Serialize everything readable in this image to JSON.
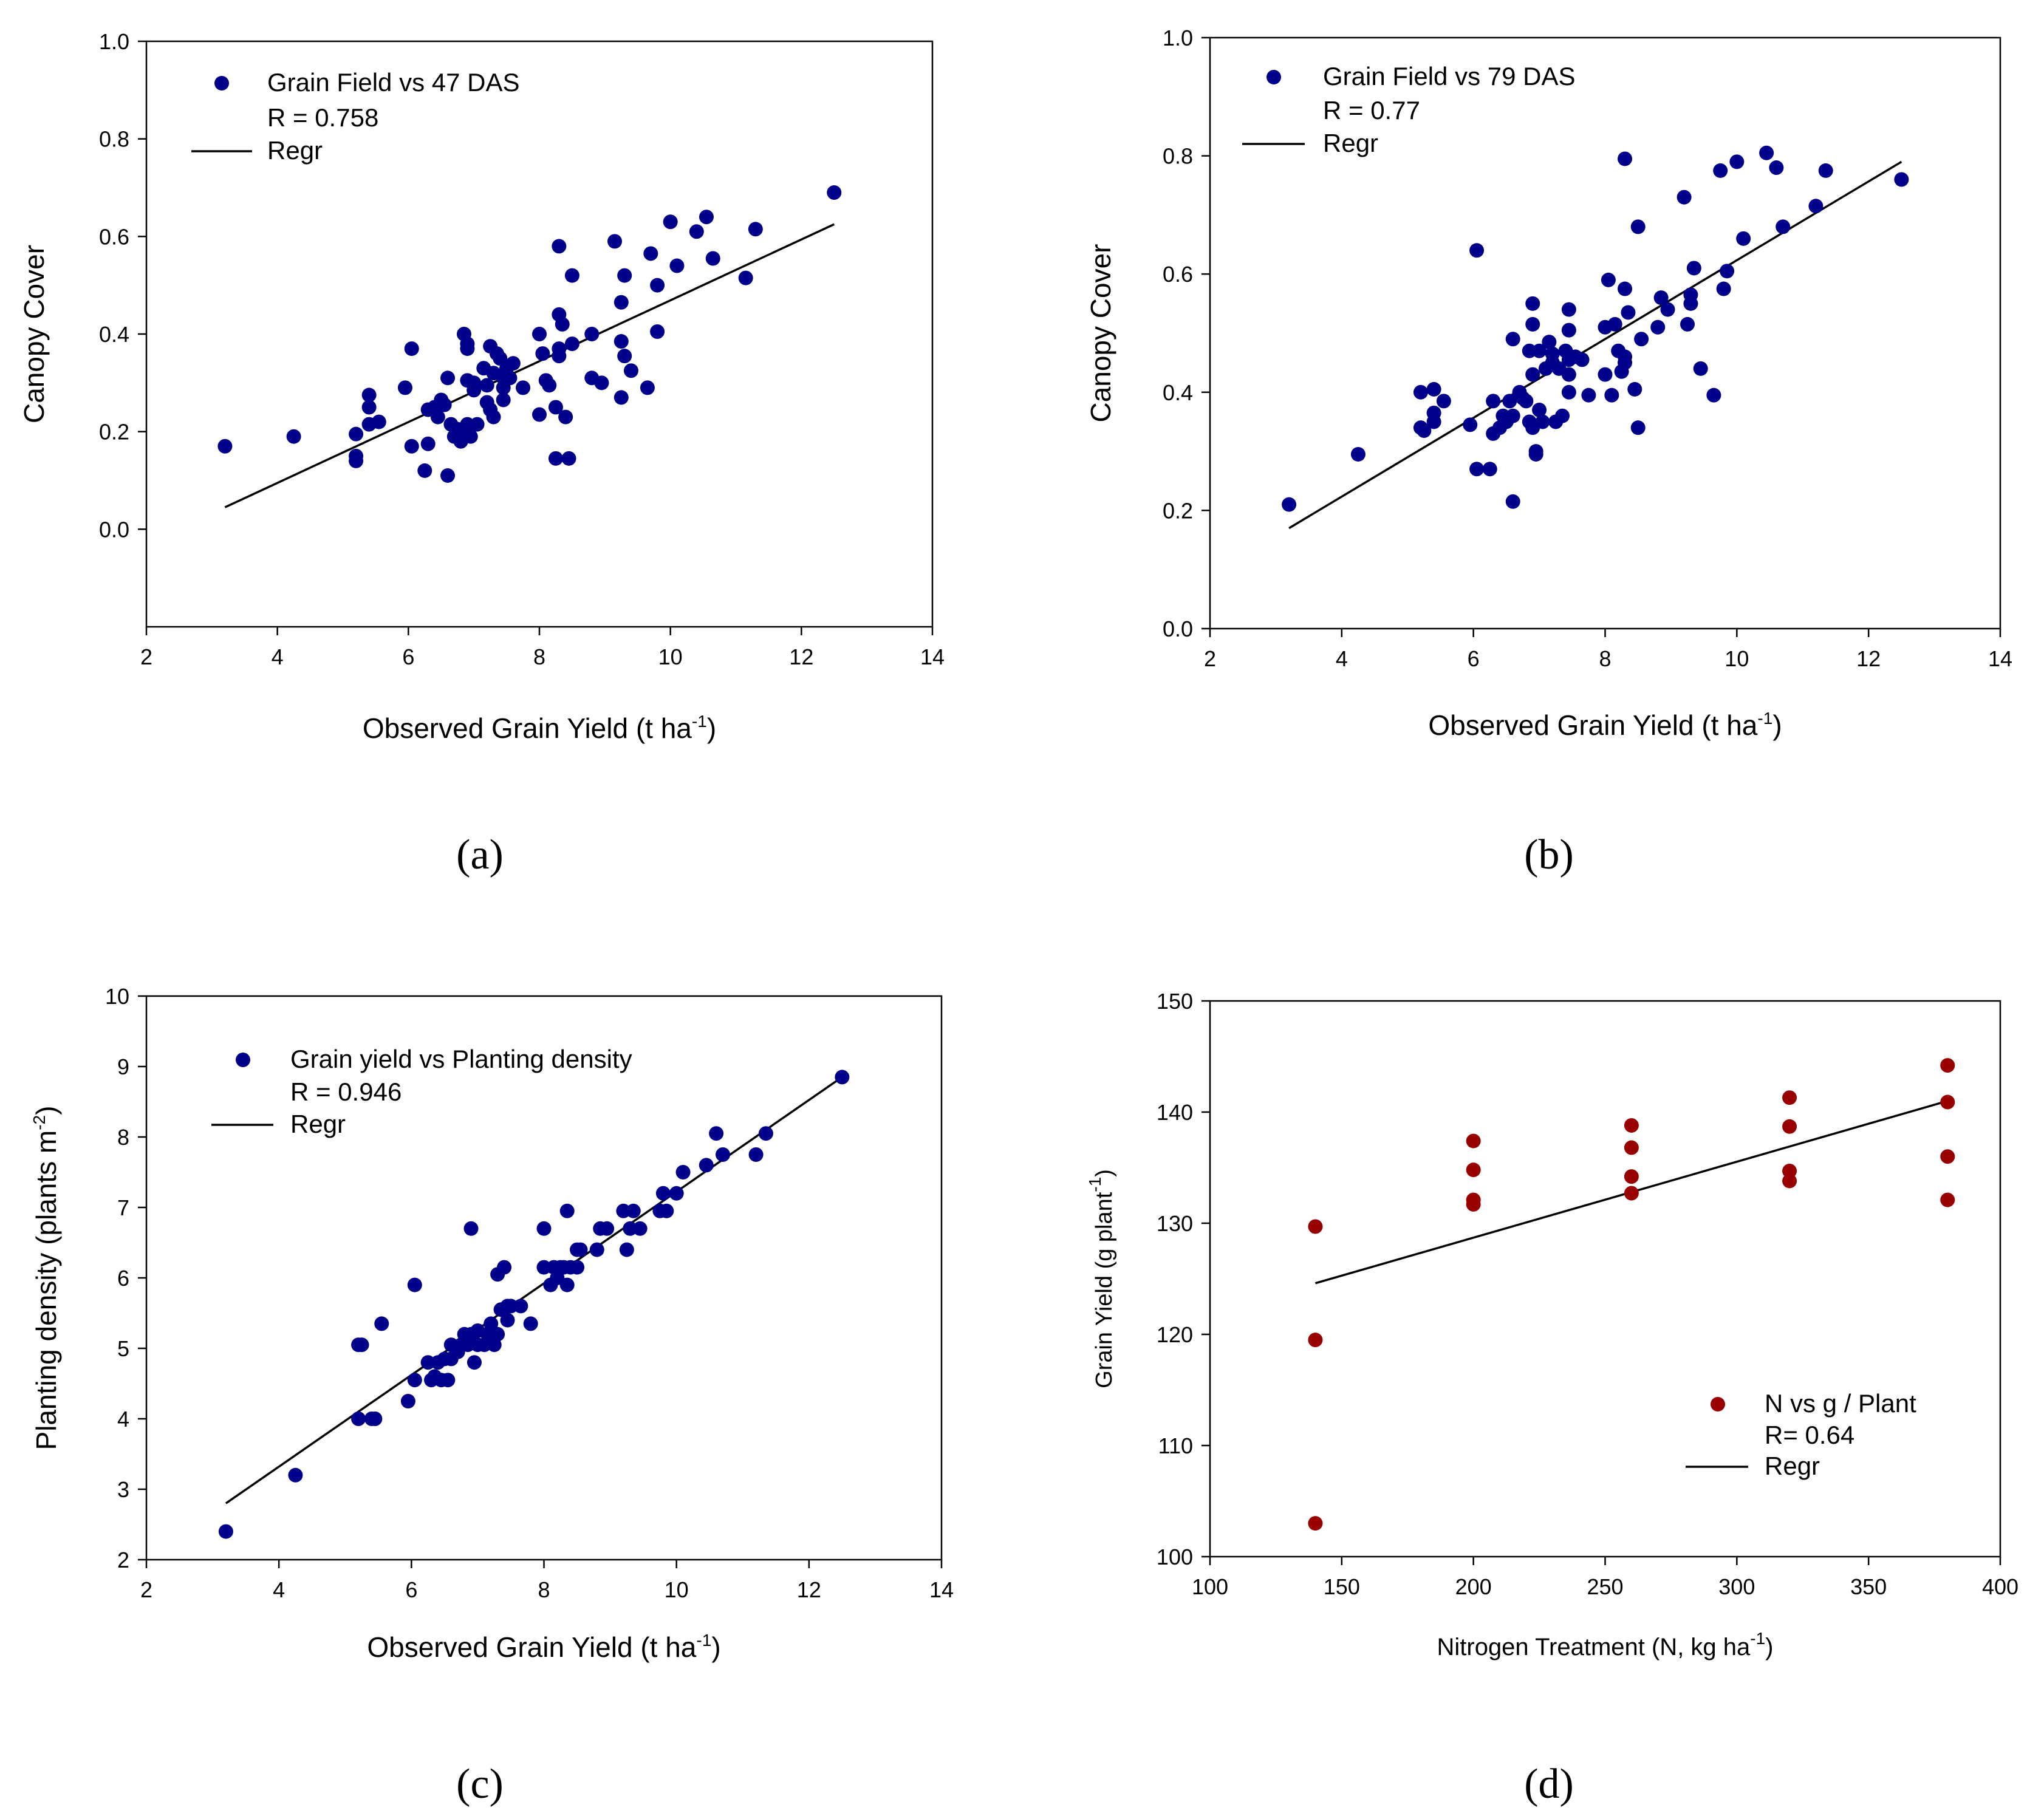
{
  "chart_data": [
    {
      "panel_label": "(a)",
      "type": "scatter",
      "xlabel": "Observed Grain Yield (t ha",
      "xlabel_sup": "-1",
      "xlabel_end": ")",
      "ylabel": "Canopy Cover",
      "xlim": [
        2,
        14
      ],
      "ylim": [
        -0.2,
        1.0
      ],
      "xticks": [
        2,
        4,
        6,
        8,
        10,
        12,
        14
      ],
      "yticks": [
        0.0,
        0.2,
        0.4,
        0.6,
        0.8,
        1.0
      ],
      "ytick_labels": [
        "0.0",
        "0.2",
        "0.4",
        "0.6",
        "0.8",
        "1.0"
      ],
      "xtick_labels": [
        "2",
        "4",
        "6",
        "8",
        "10",
        "12",
        "14"
      ],
      "legend": {
        "series_label": "Grain Field vs 47 DAS",
        "stat_label": "R = 0.758",
        "line_label": "Regr",
        "placement": "top-left"
      },
      "marker_color": "#00008B",
      "regression": {
        "x": [
          3.2,
          12.5
        ],
        "y": [
          0.045,
          0.625
        ]
      },
      "points": [
        [
          3.2,
          0.17
        ],
        [
          4.25,
          0.19
        ],
        [
          5.2,
          0.195
        ],
        [
          5.2,
          0.15
        ],
        [
          5.2,
          0.14
        ],
        [
          5.4,
          0.275
        ],
        [
          5.4,
          0.25
        ],
        [
          5.4,
          0.215
        ],
        [
          5.55,
          0.22
        ],
        [
          5.95,
          0.29
        ],
        [
          6.05,
          0.37
        ],
        [
          6.05,
          0.17
        ],
        [
          6.25,
          0.12
        ],
        [
          6.3,
          0.245
        ],
        [
          6.3,
          0.175
        ],
        [
          6.4,
          0.25
        ],
        [
          6.45,
          0.23
        ],
        [
          6.5,
          0.265
        ],
        [
          6.55,
          0.255
        ],
        [
          6.6,
          0.31
        ],
        [
          6.6,
          0.11
        ],
        [
          6.65,
          0.215
        ],
        [
          6.7,
          0.19
        ],
        [
          6.75,
          0.205
        ],
        [
          6.8,
          0.18
        ],
        [
          6.85,
          0.4
        ],
        [
          6.85,
          0.19
        ],
        [
          6.9,
          0.38
        ],
        [
          6.9,
          0.37
        ],
        [
          6.9,
          0.305
        ],
        [
          6.9,
          0.215
        ],
        [
          6.95,
          0.19
        ],
        [
          7.0,
          0.3
        ],
        [
          7.0,
          0.285
        ],
        [
          7.05,
          0.215
        ],
        [
          7.15,
          0.33
        ],
        [
          7.2,
          0.295
        ],
        [
          7.2,
          0.26
        ],
        [
          7.25,
          0.375
        ],
        [
          7.25,
          0.245
        ],
        [
          7.3,
          0.32
        ],
        [
          7.3,
          0.23
        ],
        [
          7.35,
          0.36
        ],
        [
          7.4,
          0.35
        ],
        [
          7.45,
          0.31
        ],
        [
          7.45,
          0.29
        ],
        [
          7.45,
          0.265
        ],
        [
          7.5,
          0.33
        ],
        [
          7.55,
          0.31
        ],
        [
          7.6,
          0.34
        ],
        [
          7.75,
          0.29
        ],
        [
          8.0,
          0.4
        ],
        [
          8.0,
          0.235
        ],
        [
          8.05,
          0.36
        ],
        [
          8.1,
          0.305
        ],
        [
          8.15,
          0.295
        ],
        [
          8.25,
          0.25
        ],
        [
          8.25,
          0.145
        ],
        [
          8.3,
          0.58
        ],
        [
          8.3,
          0.44
        ],
        [
          8.3,
          0.355
        ],
        [
          8.3,
          0.37
        ],
        [
          8.35,
          0.42
        ],
        [
          8.4,
          0.23
        ],
        [
          8.45,
          0.145
        ],
        [
          8.5,
          0.52
        ],
        [
          8.5,
          0.38
        ],
        [
          8.8,
          0.4
        ],
        [
          8.8,
          0.31
        ],
        [
          8.95,
          0.3
        ],
        [
          9.15,
          0.59
        ],
        [
          9.25,
          0.465
        ],
        [
          9.25,
          0.385
        ],
        [
          9.25,
          0.27
        ],
        [
          9.3,
          0.355
        ],
        [
          9.3,
          0.52
        ],
        [
          9.4,
          0.325
        ],
        [
          9.65,
          0.29
        ],
        [
          9.7,
          0.565
        ],
        [
          9.8,
          0.5
        ],
        [
          9.8,
          0.405
        ],
        [
          10.0,
          0.63
        ],
        [
          10.1,
          0.54
        ],
        [
          10.4,
          0.61
        ],
        [
          10.55,
          0.64
        ],
        [
          10.65,
          0.555
        ],
        [
          11.15,
          0.515
        ],
        [
          11.3,
          0.615
        ],
        [
          12.5,
          0.69
        ]
      ]
    },
    {
      "panel_label": "(b)",
      "type": "scatter",
      "xlabel": "Observed Grain Yield (t ha",
      "xlabel_sup": "-1",
      "xlabel_end": ")",
      "ylabel": "Canopy Cover",
      "xlim": [
        2,
        14
      ],
      "ylim": [
        0.0,
        1.0
      ],
      "xticks": [
        2,
        4,
        6,
        8,
        10,
        12,
        14
      ],
      "yticks": [
        0.0,
        0.2,
        0.4,
        0.6,
        0.8,
        1.0
      ],
      "ytick_labels": [
        "0.0",
        "0.2",
        "0.4",
        "0.6",
        "0.8",
        "1.0"
      ],
      "xtick_labels": [
        "2",
        "4",
        "6",
        "8",
        "10",
        "12",
        "14"
      ],
      "legend": {
        "series_label": "Grain Field vs 79 DAS",
        "stat_label": "R = 0.77",
        "line_label": "Regr",
        "placement": "top-left"
      },
      "marker_color": "#00008B",
      "regression": {
        "x": [
          3.2,
          12.5
        ],
        "y": [
          0.17,
          0.79
        ]
      },
      "points": [
        [
          3.2,
          0.21
        ],
        [
          4.25,
          0.295
        ],
        [
          5.2,
          0.4
        ],
        [
          5.2,
          0.34
        ],
        [
          5.25,
          0.335
        ],
        [
          5.4,
          0.405
        ],
        [
          5.4,
          0.365
        ],
        [
          5.4,
          0.35
        ],
        [
          5.55,
          0.385
        ],
        [
          5.95,
          0.345
        ],
        [
          6.05,
          0.64
        ],
        [
          6.05,
          0.27
        ],
        [
          6.25,
          0.27
        ],
        [
          6.3,
          0.385
        ],
        [
          6.3,
          0.33
        ],
        [
          6.4,
          0.34
        ],
        [
          6.45,
          0.36
        ],
        [
          6.5,
          0.35
        ],
        [
          6.55,
          0.385
        ],
        [
          6.6,
          0.36
        ],
        [
          6.6,
          0.49
        ],
        [
          6.6,
          0.215
        ],
        [
          6.7,
          0.4
        ],
        [
          6.75,
          0.39
        ],
        [
          6.8,
          0.385
        ],
        [
          6.85,
          0.35
        ],
        [
          6.85,
          0.47
        ],
        [
          6.9,
          0.55
        ],
        [
          6.9,
          0.515
        ],
        [
          6.9,
          0.43
        ],
        [
          6.9,
          0.34
        ],
        [
          6.95,
          0.3
        ],
        [
          6.95,
          0.295
        ],
        [
          7.0,
          0.47
        ],
        [
          7.0,
          0.37
        ],
        [
          7.05,
          0.35
        ],
        [
          7.1,
          0.44
        ],
        [
          7.15,
          0.485
        ],
        [
          7.2,
          0.465
        ],
        [
          7.2,
          0.45
        ],
        [
          7.25,
          0.35
        ],
        [
          7.3,
          0.44
        ],
        [
          7.35,
          0.36
        ],
        [
          7.4,
          0.47
        ],
        [
          7.45,
          0.455
        ],
        [
          7.45,
          0.43
        ],
        [
          7.45,
          0.54
        ],
        [
          7.45,
          0.505
        ],
        [
          7.45,
          0.4
        ],
        [
          7.55,
          0.46
        ],
        [
          7.65,
          0.455
        ],
        [
          7.75,
          0.395
        ],
        [
          8.0,
          0.51
        ],
        [
          8.0,
          0.43
        ],
        [
          8.05,
          0.59
        ],
        [
          8.1,
          0.395
        ],
        [
          8.15,
          0.515
        ],
        [
          8.2,
          0.47
        ],
        [
          8.25,
          0.435
        ],
        [
          8.3,
          0.795
        ],
        [
          8.3,
          0.575
        ],
        [
          8.3,
          0.46
        ],
        [
          8.3,
          0.45
        ],
        [
          8.35,
          0.535
        ],
        [
          8.45,
          0.405
        ],
        [
          8.5,
          0.68
        ],
        [
          8.5,
          0.34
        ],
        [
          8.55,
          0.49
        ],
        [
          8.8,
          0.51
        ],
        [
          8.85,
          0.56
        ],
        [
          8.95,
          0.54
        ],
        [
          9.2,
          0.73
        ],
        [
          9.25,
          0.515
        ],
        [
          9.3,
          0.565
        ],
        [
          9.3,
          0.55
        ],
        [
          9.35,
          0.61
        ],
        [
          9.45,
          0.44
        ],
        [
          9.65,
          0.395
        ],
        [
          9.75,
          0.775
        ],
        [
          9.8,
          0.575
        ],
        [
          9.85,
          0.605
        ],
        [
          10.0,
          0.79
        ],
        [
          10.1,
          0.66
        ],
        [
          10.45,
          0.805
        ],
        [
          10.6,
          0.78
        ],
        [
          10.7,
          0.68
        ],
        [
          11.2,
          0.715
        ],
        [
          11.35,
          0.775
        ],
        [
          12.5,
          0.76
        ]
      ]
    },
    {
      "panel_label": "(c)",
      "type": "scatter",
      "xlabel": "Observed Grain Yield (t ha",
      "xlabel_sup": "-1",
      "xlabel_end": ")",
      "ylabel": "Planting density (plants m",
      "ylabel_sup": "-2",
      "ylabel_end": ")",
      "xlim": [
        2,
        14
      ],
      "ylim": [
        2,
        10
      ],
      "xticks": [
        2,
        4,
        6,
        8,
        10,
        12,
        14
      ],
      "yticks": [
        2,
        3,
        4,
        5,
        6,
        7,
        8,
        9,
        10
      ],
      "ytick_labels": [
        "2",
        "3",
        "4",
        "5",
        "6",
        "7",
        "8",
        "9",
        "10"
      ],
      "xtick_labels": [
        "2",
        "4",
        "6",
        "8",
        "10",
        "12",
        "14"
      ],
      "legend": {
        "series_label": "Grain yield vs Planting density",
        "stat_label": "R = 0.946",
        "line_label": "Regr",
        "placement": "top-left"
      },
      "marker_color": "#00008B",
      "regression": {
        "x": [
          3.2,
          12.5
        ],
        "y": [
          2.8,
          8.85
        ]
      },
      "points": [
        [
          3.2,
          2.4
        ],
        [
          4.25,
          3.2
        ],
        [
          5.2,
          5.05
        ],
        [
          5.25,
          5.05
        ],
        [
          5.2,
          4.0
        ],
        [
          5.4,
          4.0
        ],
        [
          5.45,
          4.0
        ],
        [
          5.55,
          5.35
        ],
        [
          5.95,
          4.25
        ],
        [
          6.05,
          5.9
        ],
        [
          6.05,
          4.55
        ],
        [
          6.25,
          4.8
        ],
        [
          6.3,
          4.55
        ],
        [
          6.35,
          4.6
        ],
        [
          6.4,
          4.8
        ],
        [
          6.45,
          4.55
        ],
        [
          6.5,
          4.85
        ],
        [
          6.55,
          4.55
        ],
        [
          6.6,
          5.05
        ],
        [
          6.6,
          4.85
        ],
        [
          6.7,
          4.95
        ],
        [
          6.75,
          5.05
        ],
        [
          6.8,
          5.2
        ],
        [
          6.85,
          5.05
        ],
        [
          6.9,
          6.7
        ],
        [
          6.9,
          5.2
        ],
        [
          6.95,
          4.8
        ],
        [
          7.0,
          5.05
        ],
        [
          7.0,
          5.25
        ],
        [
          7.1,
          5.05
        ],
        [
          7.15,
          5.2
        ],
        [
          7.2,
          5.35
        ],
        [
          7.25,
          5.05
        ],
        [
          7.3,
          6.05
        ],
        [
          7.3,
          5.2
        ],
        [
          7.35,
          5.55
        ],
        [
          7.4,
          6.15
        ],
        [
          7.45,
          5.6
        ],
        [
          7.45,
          5.4
        ],
        [
          7.5,
          5.6
        ],
        [
          7.65,
          5.6
        ],
        [
          7.8,
          5.35
        ],
        [
          8.0,
          6.7
        ],
        [
          8.0,
          6.15
        ],
        [
          8.1,
          5.9
        ],
        [
          8.15,
          6.15
        ],
        [
          8.2,
          6.0
        ],
        [
          8.25,
          6.15
        ],
        [
          8.3,
          6.15
        ],
        [
          8.35,
          5.9
        ],
        [
          8.35,
          6.95
        ],
        [
          8.4,
          6.15
        ],
        [
          8.5,
          6.4
        ],
        [
          8.5,
          6.15
        ],
        [
          8.55,
          6.4
        ],
        [
          8.8,
          6.4
        ],
        [
          8.85,
          6.7
        ],
        [
          8.95,
          6.7
        ],
        [
          9.2,
          6.95
        ],
        [
          9.25,
          6.4
        ],
        [
          9.3,
          6.7
        ],
        [
          9.35,
          6.95
        ],
        [
          9.45,
          6.7
        ],
        [
          9.75,
          6.95
        ],
        [
          9.8,
          7.2
        ],
        [
          9.85,
          6.95
        ],
        [
          10.0,
          7.2
        ],
        [
          10.1,
          7.5
        ],
        [
          10.45,
          7.6
        ],
        [
          10.6,
          8.05
        ],
        [
          10.7,
          7.75
        ],
        [
          11.2,
          7.75
        ],
        [
          11.35,
          8.05
        ],
        [
          12.5,
          8.85
        ]
      ]
    },
    {
      "panel_label": "(d)",
      "type": "scatter",
      "xlabel": "Nitrogen Treatment (N, kg ha",
      "xlabel_sup": "-1",
      "xlabel_end": ")",
      "ylabel": "Grain Yield (g plant",
      "ylabel_sup": "-1",
      "ylabel_end": ")",
      "xlim": [
        100,
        400
      ],
      "ylim": [
        100,
        150
      ],
      "xticks": [
        100,
        150,
        200,
        250,
        300,
        350,
        400
      ],
      "yticks": [
        100,
        110,
        120,
        130,
        140,
        150
      ],
      "ytick_labels": [
        "100",
        "110",
        "120",
        "130",
        "140",
        "150"
      ],
      "xtick_labels": [
        "100",
        "150",
        "200",
        "250",
        "300",
        "350",
        "400"
      ],
      "legend": {
        "series_label": "N vs g / Plant",
        "stat_label": "R= 0.64",
        "line_label": "Regr",
        "placement": "bottom-right"
      },
      "marker_color": "#990000",
      "regression": {
        "x": [
          140,
          380
        ],
        "y": [
          124.6,
          141.0
        ]
      },
      "points": [
        [
          140,
          129.7
        ],
        [
          140,
          119.5
        ],
        [
          140,
          103.0
        ],
        [
          200,
          137.4
        ],
        [
          200,
          134.8
        ],
        [
          200,
          132.1
        ],
        [
          200,
          131.7
        ],
        [
          260,
          138.8
        ],
        [
          260,
          136.8
        ],
        [
          260,
          134.2
        ],
        [
          260,
          132.7
        ],
        [
          320,
          141.3
        ],
        [
          320,
          138.7
        ],
        [
          320,
          134.7
        ],
        [
          320,
          133.8
        ],
        [
          380,
          144.2
        ],
        [
          380,
          140.9
        ],
        [
          380,
          136.0
        ],
        [
          380,
          132.1
        ]
      ]
    }
  ]
}
